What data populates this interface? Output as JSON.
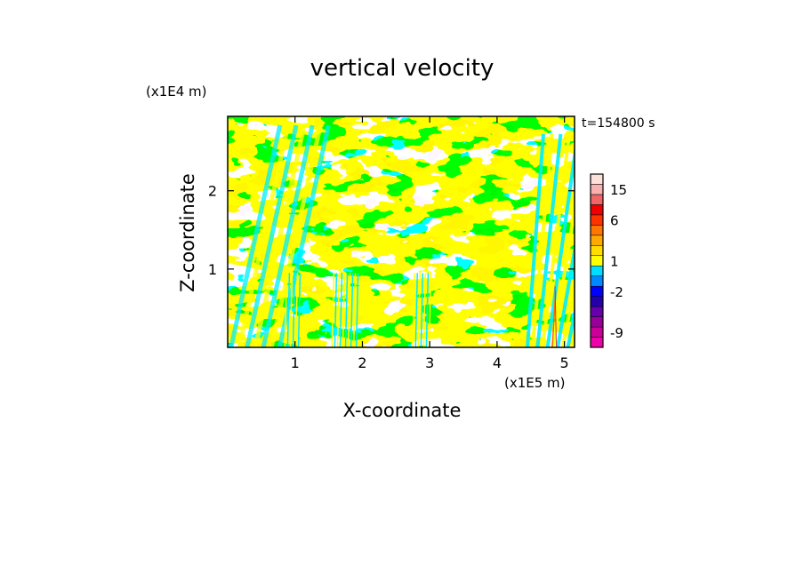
{
  "chart_data": {
    "type": "heatmap",
    "title": "vertical velocity",
    "xlabel": "X-coordinate",
    "ylabel": "Z-coordinate",
    "x_unit": "(x1E5 m)",
    "y_unit": "(x1E4 m)",
    "timestamp": "t=154800 s",
    "xlim": [
      0,
      5.15
    ],
    "ylim": [
      0,
      2.95
    ],
    "x_ticks": [
      1,
      2,
      3,
      4,
      5
    ],
    "y_ticks": [
      1,
      2
    ],
    "x_tick_labels": [
      "1",
      "2",
      "3",
      "4",
      "5"
    ],
    "y_tick_labels": [
      "1",
      "2"
    ],
    "field_colors": {
      "negative": "#00eeff",
      "positive": "#ffff00",
      "strong": "#ff6600"
    },
    "colorbar": {
      "levels": [
        {
          "color": "#ee00aa"
        },
        {
          "color": "#cc0099"
        },
        {
          "color": "#990099"
        },
        {
          "color": "#6600aa"
        },
        {
          "color": "#2200aa"
        },
        {
          "color": "#0000ff"
        },
        {
          "color": "#0088ff"
        },
        {
          "color": "#00ddff"
        },
        {
          "color": "#ffff00"
        },
        {
          "color": "#ffdd00"
        },
        {
          "color": "#ffaa00"
        },
        {
          "color": "#ff7700"
        },
        {
          "color": "#ff3300"
        },
        {
          "color": "#ee0000"
        },
        {
          "color": "#ee6666"
        },
        {
          "color": "#f8b0b0"
        },
        {
          "color": "#fde0d8"
        }
      ],
      "labels": [
        "-9",
        "-2",
        "1",
        "6",
        "15"
      ]
    }
  }
}
